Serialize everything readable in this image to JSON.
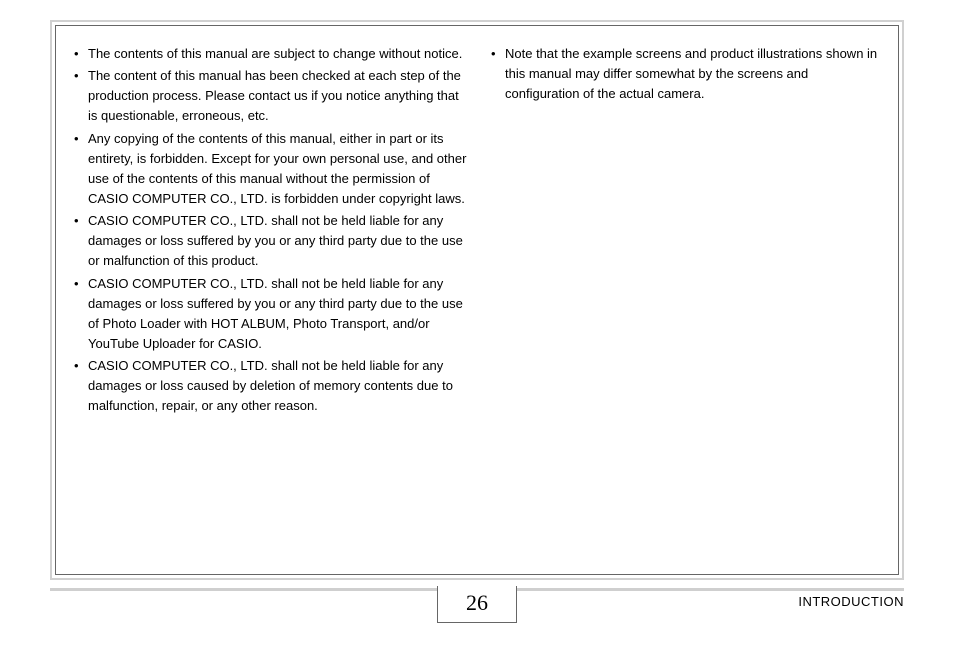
{
  "page": {
    "number": "26",
    "section": "INTRODUCTION"
  },
  "leftColumn": {
    "items": [
      "The contents of this manual are subject to change without notice.",
      "The content of this manual has been checked at each step of the production process. Please contact us if you notice anything that is questionable, erroneous, etc.",
      "Any copying of the contents of this manual, either in part or its entirety, is forbidden. Except for your own personal use, and other use of the contents of this manual without the permission of CASIO COMPUTER CO., LTD. is forbidden under copyright laws.",
      "CASIO COMPUTER CO., LTD. shall not be held liable for any damages or loss suffered by you or any third party due to the use or malfunction of this product.",
      "CASIO COMPUTER CO., LTD. shall not be held liable for any damages or loss suffered by you or any third party due to the use of Photo Loader with HOT ALBUM, Photo Transport, and/or YouTube Uploader for CASIO.",
      "CASIO COMPUTER CO., LTD. shall not be held liable for any damages or loss caused by deletion of memory contents due to malfunction, repair, or any other reason."
    ]
  },
  "rightColumn": {
    "items": [
      "Note that the example screens and product illustrations shown in this manual may differ somewhat by the screens and configuration of the actual camera."
    ]
  },
  "colors": {
    "outerBorder": "#d0d0d0",
    "innerBorder": "#666666",
    "text": "#000000",
    "rule": "#cfcfcf",
    "background": "#ffffff"
  },
  "typography": {
    "bodyFontSize": 13,
    "bodyLineHeight": 1.55,
    "pageNumberFontSize": 22,
    "pageNumberFontFamily": "Times New Roman"
  }
}
